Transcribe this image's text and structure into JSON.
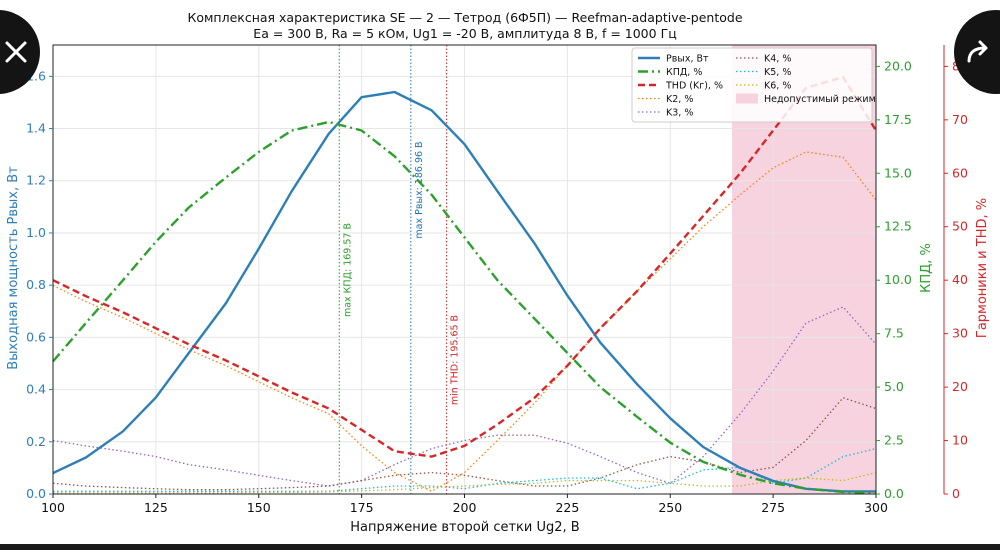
{
  "chart_data": {
    "type": "line",
    "title": "Комплексная характеристика SE — 2 — Тетрод (6Ф5П) — Reefman-adaptive-pentode",
    "subtitle": "Ea = 300 В, Ra = 5 кОм, Ug1 = -20 В, амплитуда 8 В, f = 1000 Гц",
    "xlabel": "Напряжение второй сетки Ug2, В",
    "ylabel_left": "Выходная мощность Pвых, Вт",
    "ylabel_right1": "КПД, %",
    "ylabel_right2": "Гармоники и THD, %",
    "xlim": [
      100,
      300
    ],
    "ylim_left": [
      0,
      1.72
    ],
    "ylim_right1": [
      0,
      21
    ],
    "ylim_right2": [
      0,
      84
    ],
    "xticks": [
      "100",
      "125",
      "150",
      "175",
      "200",
      "225",
      "250",
      "275",
      "300"
    ],
    "yticks_left": [
      "0.0",
      "0.2",
      "0.4",
      "0.6",
      "0.8",
      "1.0",
      "1.2",
      "1.4",
      "1.6"
    ],
    "yticks_right1": [
      "0.0",
      "2.5",
      "5.0",
      "7.5",
      "10.0",
      "12.5",
      "15.0",
      "17.5",
      "20.0"
    ],
    "yticks_right2": [
      "0",
      "10",
      "20",
      "30",
      "40",
      "50",
      "60",
      "70",
      "80"
    ],
    "grid": true,
    "legend_position": "top-right",
    "x": [
      100,
      108,
      117,
      125,
      133,
      142,
      150,
      158,
      167,
      175,
      183,
      192,
      200,
      208,
      217,
      225,
      233,
      242,
      250,
      258,
      267,
      275,
      283,
      292,
      300
    ],
    "series": [
      {
        "name": "Pвых, Вт",
        "axis": "left",
        "color": "#2e7fb8",
        "style": "solid",
        "values": [
          0.08,
          0.14,
          0.24,
          0.37,
          0.54,
          0.73,
          0.94,
          1.16,
          1.38,
          1.52,
          1.54,
          1.47,
          1.34,
          1.16,
          0.96,
          0.76,
          0.58,
          0.42,
          0.29,
          0.18,
          0.1,
          0.05,
          0.02,
          0.01,
          0.01
        ]
      },
      {
        "name": "КПД, %",
        "axis": "right1",
        "color": "#2ca02c",
        "style": "dashdot",
        "values": [
          6.2,
          8.0,
          10.0,
          11.8,
          13.4,
          14.8,
          16.0,
          17.0,
          17.4,
          17.0,
          15.8,
          14.0,
          12.0,
          10.0,
          8.2,
          6.6,
          5.0,
          3.6,
          2.4,
          1.5,
          0.9,
          0.5,
          0.25,
          0.1,
          0.05
        ]
      },
      {
        "name": "THD (Kг), %",
        "axis": "right2",
        "color": "#d62728",
        "style": "dashed",
        "values": [
          40.0,
          37.0,
          34.0,
          31.0,
          28.0,
          25.0,
          22.0,
          19.0,
          16.0,
          12.0,
          8.0,
          7.0,
          9.0,
          13.0,
          18.0,
          24.0,
          31.0,
          38.0,
          45.0,
          52.0,
          60.0,
          68.0,
          76.0,
          78.0,
          68.0
        ]
      },
      {
        "name": "K2, %",
        "axis": "right2",
        "color": "#ff7f0e",
        "style": "dotted",
        "values": [
          39.0,
          36.0,
          33.0,
          30.0,
          27.0,
          24.0,
          21.0,
          18.0,
          15.0,
          9.0,
          4.0,
          0.5,
          4.0,
          10.0,
          17.0,
          24.0,
          31.0,
          38.0,
          44.0,
          50.0,
          56.0,
          61.0,
          64.0,
          63.0,
          55.0
        ]
      },
      {
        "name": "K3, %",
        "axis": "right2",
        "color": "#9467bd",
        "style": "dotted",
        "values": [
          10.0,
          9.0,
          8.0,
          7.0,
          5.5,
          4.5,
          3.5,
          2.5,
          1.5,
          2.5,
          5.5,
          8.5,
          10.0,
          11.0,
          11.0,
          9.5,
          7.0,
          4.0,
          2.0,
          7.0,
          15.0,
          23.0,
          32.0,
          35.0,
          28.0
        ]
      },
      {
        "name": "K4, %",
        "axis": "right2",
        "color": "#8c564b",
        "style": "dotted",
        "values": [
          2.0,
          1.5,
          1.2,
          1.0,
          0.8,
          0.8,
          1.0,
          1.2,
          1.5,
          2.5,
          3.5,
          4.0,
          3.5,
          2.5,
          1.5,
          1.5,
          3.0,
          5.5,
          7.0,
          6.0,
          4.0,
          5.0,
          10.0,
          18.0,
          16.0
        ]
      },
      {
        "name": "K5, %",
        "axis": "right2",
        "color": "#17becf",
        "style": "dotted",
        "values": [
          0.5,
          0.5,
          0.5,
          0.5,
          0.5,
          0.5,
          0.5,
          0.5,
          0.5,
          1.0,
          1.5,
          1.5,
          1.0,
          2.0,
          2.5,
          3.0,
          3.0,
          1.0,
          2.0,
          4.5,
          5.0,
          2.0,
          3.0,
          7.0,
          8.5
        ]
      },
      {
        "name": "K6, %",
        "axis": "right2",
        "color": "#bcbd22",
        "style": "dotted",
        "values": [
          0.2,
          0.2,
          0.2,
          0.2,
          0.2,
          0.2,
          0.3,
          0.3,
          0.4,
          0.6,
          0.8,
          1.2,
          1.5,
          1.8,
          2.0,
          2.5,
          2.5,
          2.5,
          2.0,
          1.5,
          1.5,
          2.5,
          3.0,
          2.5,
          4.0
        ]
      }
    ],
    "shaded_region": {
      "label": "Недопустимый режим",
      "x_from": 265,
      "x_to": 300,
      "color": "#f7d3df"
    },
    "vlines": [
      {
        "x": 169.57,
        "label": "max КПД: 169.57 В",
        "color": "#2ca02c"
      },
      {
        "x": 186.96,
        "label": "max Pвых: 186.96 В",
        "color": "#1f77b4"
      },
      {
        "x": 195.65,
        "label": "min THD: 195.65 В",
        "color": "#d62728"
      }
    ],
    "colors": {
      "left_axis": "#2e7fb8",
      "right1_axis": "#2ca02c",
      "right2_axis": "#d62728"
    }
  },
  "ui": {
    "close_icon": "close-icon",
    "share_icon": "share-arrow-icon"
  }
}
